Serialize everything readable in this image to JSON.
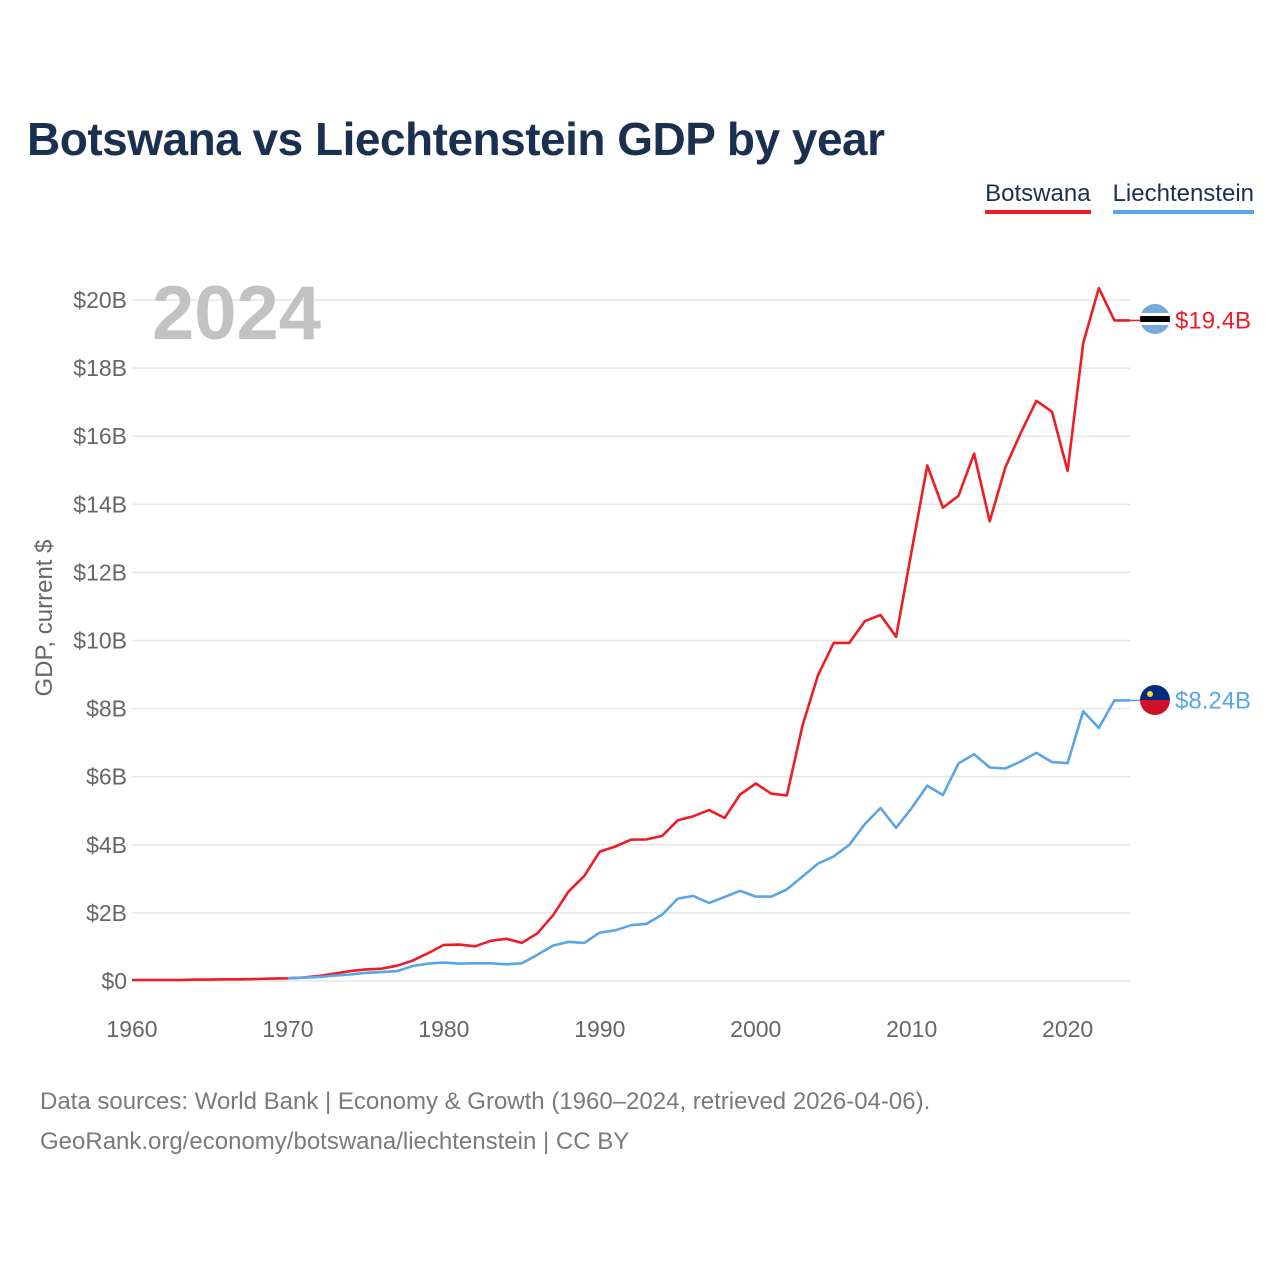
{
  "title": "Botswana vs Liechtenstein GDP by year",
  "legend": [
    {
      "label": "Botswana",
      "color": "#ee1c25"
    },
    {
      "label": "Liechtenstein",
      "color": "#5aa5e8"
    }
  ],
  "year_label": "2024",
  "footer": {
    "line1": "Data sources: World Bank | Economy & Growth (1960–2024, retrieved 2026-04-06).",
    "line2": "GeoRank.org/economy/botswana/liechtenstein | CC BY"
  },
  "chart_data": {
    "type": "line",
    "title": "Botswana vs Liechtenstein GDP by year",
    "xlabel": "",
    "ylabel": "GDP, current $",
    "xlim": [
      1960,
      2024
    ],
    "ylim": [
      0,
      20
    ],
    "y_unit": "billion USD",
    "x_ticks": [
      1960,
      1970,
      1980,
      1990,
      2000,
      2010,
      2020
    ],
    "x_tick_labels": [
      "1960",
      "1970",
      "1980",
      "1990",
      "2000",
      "2010",
      "2020"
    ],
    "y_ticks": [
      0,
      2,
      4,
      6,
      8,
      10,
      12,
      14,
      16,
      18,
      20
    ],
    "y_tick_labels": [
      "$0",
      "$2B",
      "$4B",
      "$6B",
      "$8B",
      "$10B",
      "$12B",
      "$14B",
      "$16B",
      "$18B",
      "$20B"
    ],
    "grid": true,
    "legend_position": "top-right",
    "series": [
      {
        "name": "Botswana",
        "color": "#ee1c25",
        "end_label": "$19.4B",
        "x": [
          1960,
          1961,
          1962,
          1963,
          1964,
          1965,
          1966,
          1967,
          1968,
          1969,
          1970,
          1971,
          1972,
          1973,
          1974,
          1975,
          1976,
          1977,
          1978,
          1979,
          1980,
          1981,
          1982,
          1983,
          1984,
          1985,
          1986,
          1987,
          1988,
          1989,
          1990,
          1991,
          1992,
          1993,
          1994,
          1995,
          1996,
          1997,
          1998,
          1999,
          2000,
          2001,
          2002,
          2003,
          2004,
          2005,
          2006,
          2007,
          2008,
          2009,
          2010,
          2011,
          2012,
          2013,
          2014,
          2015,
          2016,
          2017,
          2018,
          2019,
          2020,
          2021,
          2022,
          2023,
          2024
        ],
        "values": [
          0.03,
          0.03,
          0.03,
          0.03,
          0.04,
          0.04,
          0.05,
          0.05,
          0.06,
          0.07,
          0.08,
          0.1,
          0.15,
          0.22,
          0.29,
          0.34,
          0.36,
          0.45,
          0.6,
          0.82,
          1.06,
          1.07,
          1.02,
          1.18,
          1.24,
          1.12,
          1.4,
          1.93,
          2.63,
          3.08,
          3.8,
          3.95,
          4.15,
          4.16,
          4.26,
          4.72,
          4.84,
          5.02,
          4.79,
          5.48,
          5.8,
          5.5,
          5.45,
          7.5,
          8.99,
          9.93,
          9.93,
          10.57,
          10.75,
          10.11,
          12.64,
          15.14,
          13.9,
          14.25,
          15.49,
          13.5,
          15.08,
          16.1,
          17.04,
          16.72,
          14.98,
          18.73,
          20.35,
          19.4,
          19.4
        ]
      },
      {
        "name": "Liechtenstein",
        "color": "#5aa5e8",
        "end_label": "$8.24B",
        "x": [
          1970,
          1971,
          1972,
          1973,
          1974,
          1975,
          1976,
          1977,
          1978,
          1979,
          1980,
          1981,
          1982,
          1983,
          1984,
          1985,
          1986,
          1987,
          1988,
          1989,
          1990,
          1991,
          1992,
          1993,
          1994,
          1995,
          1996,
          1997,
          1998,
          1999,
          2000,
          2001,
          2002,
          2003,
          2004,
          2005,
          2006,
          2007,
          2008,
          2009,
          2010,
          2011,
          2012,
          2013,
          2014,
          2015,
          2016,
          2017,
          2018,
          2019,
          2020,
          2021,
          2022,
          2023,
          2024
        ],
        "values": [
          0.08,
          0.1,
          0.12,
          0.16,
          0.19,
          0.24,
          0.26,
          0.29,
          0.44,
          0.51,
          0.54,
          0.51,
          0.52,
          0.52,
          0.49,
          0.52,
          0.77,
          1.04,
          1.15,
          1.12,
          1.42,
          1.49,
          1.64,
          1.68,
          1.95,
          2.42,
          2.5,
          2.29,
          2.47,
          2.65,
          2.48,
          2.48,
          2.69,
          3.07,
          3.45,
          3.66,
          4.0,
          4.61,
          5.08,
          4.5,
          5.08,
          5.74,
          5.46,
          6.39,
          6.66,
          6.27,
          6.24,
          6.45,
          6.7,
          6.43,
          6.4,
          7.92,
          7.43,
          8.24,
          8.24
        ]
      }
    ]
  }
}
